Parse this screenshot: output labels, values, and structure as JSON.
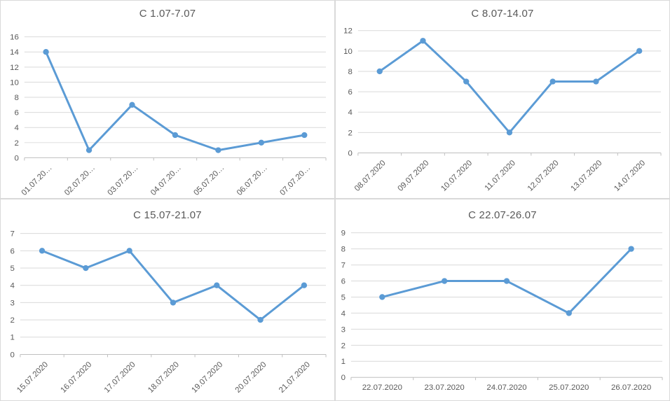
{
  "colors": {
    "line": "#5B9BD5",
    "marker": "#5B9BD5",
    "grid": "#D9D9D9",
    "axis": "#BFBFBF",
    "text": "#595959",
    "panel_border": "#D9D9D9",
    "background": "#FFFFFF"
  },
  "chart_data": [
    {
      "type": "line",
      "title": "С 1.07-7.07",
      "categories": [
        "01.07.20…",
        "02.07.20…",
        "03.07.20…",
        "04.07.20…",
        "05.07.20…",
        "06.07.20…",
        "07.07.20…"
      ],
      "values": [
        14,
        1,
        7,
        3,
        1,
        2,
        3
      ],
      "ylim": [
        0,
        16
      ],
      "y_ticks": [
        0,
        2,
        4,
        6,
        8,
        10,
        12,
        14,
        16
      ],
      "x_label_rotation": -45,
      "xlabel": "",
      "ylabel": "",
      "legend": "none",
      "grid": "horizontal"
    },
    {
      "type": "line",
      "title": "С 8.07-14.07",
      "categories": [
        "08.07.2020",
        "09.07.2020",
        "10.07.2020",
        "11.07.2020",
        "12.07.2020",
        "13.07.2020",
        "14.07.2020"
      ],
      "values": [
        8,
        11,
        7,
        2,
        7,
        7,
        10
      ],
      "ylim": [
        0,
        12
      ],
      "y_ticks": [
        0,
        2,
        4,
        6,
        8,
        10,
        12
      ],
      "x_label_rotation": -45,
      "xlabel": "",
      "ylabel": "",
      "legend": "none",
      "grid": "horizontal"
    },
    {
      "type": "line",
      "title": "С 15.07-21.07",
      "categories": [
        "15.07.2020",
        "16.07.2020",
        "17.07.2020",
        "18.07.2020",
        "19.07.2020",
        "20.07.2020",
        "21.07.2020"
      ],
      "values": [
        6,
        5,
        6,
        3,
        4,
        2,
        4
      ],
      "ylim": [
        0,
        7
      ],
      "y_ticks": [
        0,
        1,
        2,
        3,
        4,
        5,
        6,
        7
      ],
      "x_label_rotation": -45,
      "xlabel": "",
      "ylabel": "",
      "legend": "none",
      "grid": "horizontal"
    },
    {
      "type": "line",
      "title": "С 22.07-26.07",
      "categories": [
        "22.07.2020",
        "23.07.2020",
        "24.07.2020",
        "25.07.2020",
        "26.07.2020"
      ],
      "values": [
        5,
        6,
        6,
        4,
        8
      ],
      "ylim": [
        0,
        9
      ],
      "y_ticks": [
        0,
        1,
        2,
        3,
        4,
        5,
        6,
        7,
        8,
        9
      ],
      "x_label_rotation": 0,
      "xlabel": "",
      "ylabel": "",
      "legend": "none",
      "grid": "horizontal"
    }
  ]
}
